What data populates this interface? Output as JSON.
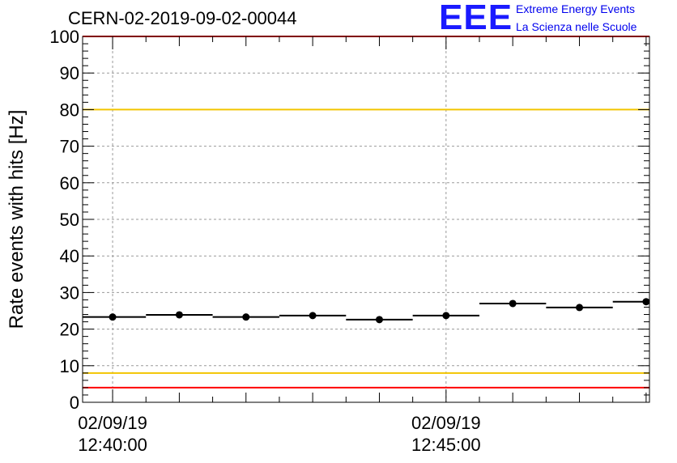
{
  "header": {
    "title": "CERN-02-2019-09-02-00044",
    "logo_mark": "EEE",
    "logo_line1": "Extreme Energy Events",
    "logo_line2": "La Scienza nelle Scuole"
  },
  "colors": {
    "red_limit": "#ff0000",
    "yellow_limit": "#f2c500",
    "marker": "#000000",
    "grid": "#9a9a9a",
    "logo": "#1a1aff"
  },
  "chart_data": {
    "type": "scatter",
    "title": "CERN-02-2019-09-02-00044",
    "ylabel": "Rate events with hits [Hz]",
    "xlabel": "",
    "ylim": [
      0,
      100
    ],
    "yticks": [
      0,
      10,
      20,
      30,
      40,
      50,
      60,
      70,
      80,
      90,
      100
    ],
    "xlim": [
      "12:39:33",
      "12:48:03"
    ],
    "xticks": [
      {
        "date": "02/09/19",
        "time": "12:40:00"
      },
      {
        "date": "02/09/19",
        "time": "12:45:00"
      }
    ],
    "grid": true,
    "bin_width_s": 60,
    "series": [
      {
        "x": [
          "12:40:00",
          "12:41:00",
          "12:42:00",
          "12:43:00",
          "12:44:00",
          "12:45:00",
          "12:46:00",
          "12:47:00",
          "12:48:00"
        ],
        "values": [
          23.3,
          23.9,
          23.3,
          23.7,
          22.6,
          23.7,
          27.0,
          25.9,
          27.5
        ]
      }
    ],
    "reference_lines": [
      {
        "y": 100,
        "color": "red"
      },
      {
        "y": 80,
        "color": "yellow"
      },
      {
        "y": 8,
        "color": "yellow"
      },
      {
        "y": 4,
        "color": "red"
      }
    ]
  }
}
